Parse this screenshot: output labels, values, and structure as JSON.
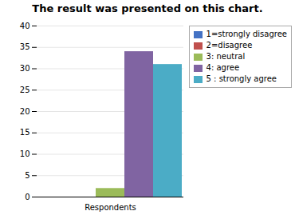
{
  "chart_data": {
    "type": "bar",
    "title": "The result was presented on this chart.",
    "categories": [
      "Respondents"
    ],
    "series": [
      {
        "name": "1=strongly disagree",
        "color": "#4472C4",
        "values": [
          0
        ]
      },
      {
        "name": "2=disagree",
        "color": "#C0504D",
        "values": [
          0
        ]
      },
      {
        "name": "3: neutral",
        "color": "#9BBB59",
        "values": [
          2
        ]
      },
      {
        "name": "4: agree",
        "color": "#8064A2",
        "values": [
          34
        ]
      },
      {
        "name": "5 : strongly agree",
        "color": "#4BACC6",
        "values": [
          31
        ]
      }
    ],
    "ylim": [
      0,
      40
    ],
    "yticks": [
      0,
      5,
      10,
      15,
      20,
      25,
      30,
      35,
      40
    ],
    "grid": true,
    "legend": "upper right"
  }
}
